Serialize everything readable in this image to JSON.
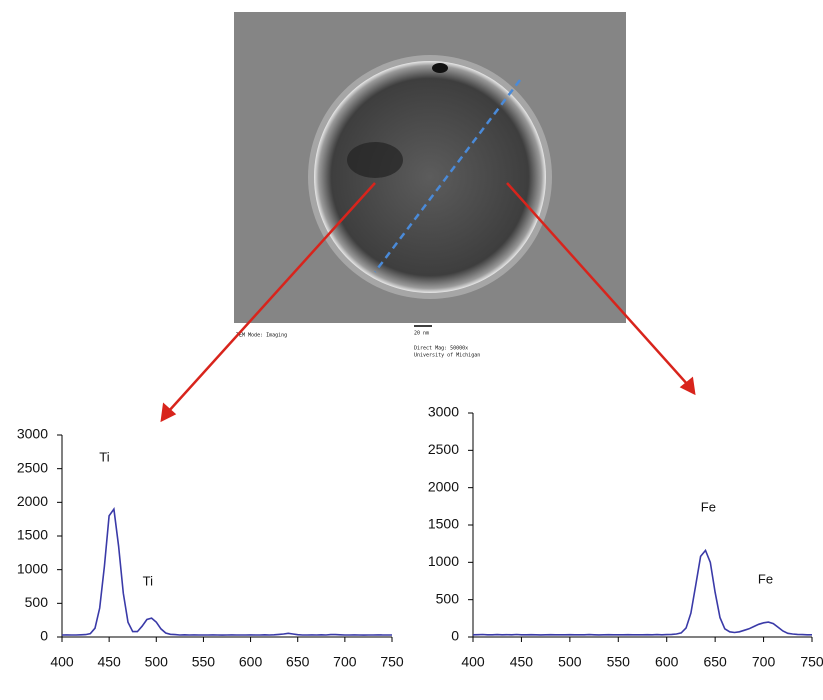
{
  "image_captions": [
    "TEM Mode: Imaging",
    "20 nm",
    "Direct Mag: 50000x",
    "University of Michigan"
  ],
  "chart_data": [
    {
      "type": "line",
      "color": "#3a3aa8",
      "x": [
        400,
        405,
        410,
        415,
        420,
        425,
        430,
        435,
        440,
        445,
        450,
        455,
        460,
        465,
        470,
        475,
        480,
        485,
        490,
        495,
        500,
        505,
        510,
        515,
        520,
        525,
        530,
        535,
        540,
        545,
        550,
        555,
        560,
        565,
        570,
        575,
        580,
        585,
        590,
        595,
        600,
        605,
        610,
        615,
        620,
        625,
        630,
        635,
        640,
        645,
        650,
        655,
        660,
        665,
        670,
        675,
        680,
        685,
        690,
        695,
        700,
        705,
        710,
        715,
        720,
        725,
        730,
        735,
        740,
        745,
        750
      ],
      "values": [
        30,
        31,
        29,
        30,
        32,
        35,
        50,
        130,
        430,
        1050,
        1800,
        1900,
        1350,
        650,
        220,
        80,
        80,
        160,
        260,
        280,
        220,
        120,
        60,
        40,
        35,
        30,
        32,
        29,
        31,
        30,
        30,
        29,
        31,
        30,
        28,
        30,
        31,
        29,
        30,
        30,
        31,
        30,
        29,
        32,
        30,
        33,
        38,
        45,
        55,
        45,
        34,
        30,
        29,
        31,
        30,
        32,
        30,
        36,
        35,
        32,
        30,
        29,
        31,
        30,
        28,
        30,
        29,
        31,
        30,
        29,
        30
      ],
      "xlim": [
        400,
        750
      ],
      "ylim": [
        0,
        3000
      ],
      "xticks": [
        400,
        450,
        500,
        550,
        600,
        650,
        700,
        750
      ],
      "yticks": [
        0,
        500,
        1000,
        1500,
        2000,
        2500,
        3000
      ],
      "annotations": [
        {
          "text": "Ti",
          "x": 445,
          "y": 2660
        },
        {
          "text": "Ti",
          "x": 491,
          "y": 817
        }
      ]
    },
    {
      "type": "line",
      "color": "#3a3aa8",
      "x": [
        400,
        405,
        410,
        415,
        420,
        425,
        430,
        435,
        440,
        445,
        450,
        455,
        460,
        465,
        470,
        475,
        480,
        485,
        490,
        495,
        500,
        505,
        510,
        515,
        520,
        525,
        530,
        535,
        540,
        545,
        550,
        555,
        560,
        565,
        570,
        575,
        580,
        585,
        590,
        595,
        600,
        605,
        610,
        615,
        620,
        625,
        630,
        635,
        640,
        645,
        650,
        655,
        660,
        665,
        670,
        675,
        680,
        685,
        690,
        695,
        700,
        705,
        710,
        715,
        720,
        725,
        730,
        735,
        740,
        745,
        750
      ],
      "values": [
        30,
        31,
        33,
        30,
        29,
        32,
        30,
        31,
        30,
        33,
        30,
        29,
        31,
        30,
        28,
        30,
        31,
        30,
        29,
        30,
        31,
        30,
        29,
        30,
        32,
        30,
        28,
        30,
        31,
        30,
        29,
        30,
        31,
        30,
        30,
        29,
        31,
        30,
        32,
        30,
        32,
        35,
        40,
        55,
        120,
        320,
        700,
        1080,
        1160,
        1000,
        600,
        260,
        110,
        70,
        60,
        70,
        90,
        110,
        140,
        170,
        190,
        200,
        180,
        130,
        80,
        50,
        40,
        35,
        32,
        30,
        30
      ],
      "xlim": [
        400,
        750
      ],
      "ylim": [
        0,
        3000
      ],
      "xticks": [
        400,
        450,
        500,
        550,
        600,
        650,
        700,
        750
      ],
      "yticks": [
        0,
        500,
        1000,
        1500,
        2000,
        2500,
        3000
      ],
      "annotations": [
        {
          "text": "Fe",
          "x": 643,
          "y": 1730
        },
        {
          "text": "Fe",
          "x": 702,
          "y": 763
        }
      ]
    }
  ]
}
